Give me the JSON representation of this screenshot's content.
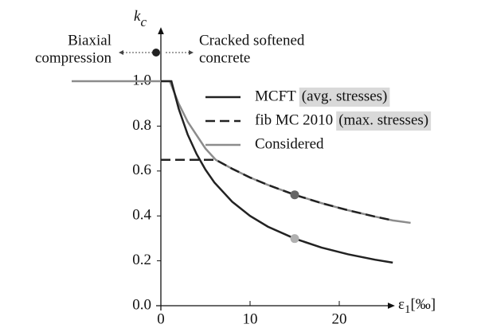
{
  "chart_data": {
    "type": "line",
    "y_label": {
      "main": "k",
      "sub": "c"
    },
    "x_label": {
      "main": "ε",
      "sub": "1",
      "unit": "[‰]"
    },
    "annotations": [
      [
        "Biaxial",
        "compression"
      ],
      [
        "Cracked softened",
        "concrete"
      ]
    ],
    "xlim": [
      -10,
      27.5
    ],
    "ylim": [
      0,
      1.0
    ],
    "xticks": [
      0,
      10,
      20
    ],
    "yticks": [
      {
        "value": 0,
        "label": "0.0"
      },
      {
        "value": 0.2,
        "label": "0.2"
      },
      {
        "value": 0.4,
        "label": "0.4"
      },
      {
        "value": 0.6,
        "label": "0.6"
      },
      {
        "value": 0.8,
        "label": "0.8"
      },
      {
        "value": 1.0,
        "label": "1.0"
      }
    ],
    "series": [
      {
        "name": "Considered",
        "color": "#8c8c8c",
        "dash": "solid",
        "x": [
          -10,
          0,
          1,
          2,
          3,
          4,
          5,
          6.15,
          8,
          10,
          12,
          15,
          18,
          21,
          24,
          26,
          28
        ],
        "values": [
          1,
          1,
          1,
          0.9,
          0.82,
          0.76,
          0.7,
          0.65,
          0.61,
          0.571,
          0.538,
          0.494,
          0.457,
          0.425,
          0.397,
          0.38,
          0.369
        ]
      },
      {
        "name": "MCFT",
        "note": "(avg. stresses)",
        "color": "#222222",
        "dash": "solid",
        "x": [
          0,
          1.18,
          2,
          3,
          4,
          5,
          6,
          8,
          10,
          12,
          15,
          18,
          21,
          24,
          26
        ],
        "values": [
          1,
          1,
          0.877,
          0.763,
          0.676,
          0.606,
          0.549,
          0.463,
          0.4,
          0.352,
          0.299,
          0.259,
          0.229,
          0.205,
          0.192
        ]
      },
      {
        "name": "fib MC 2010",
        "note": "(max. stresses)",
        "color": "#222222",
        "dash": "dashed",
        "x": [
          0,
          6.15,
          8,
          10,
          12,
          15,
          18,
          21,
          24,
          26
        ],
        "values": [
          0.65,
          0.65,
          0.61,
          0.571,
          0.538,
          0.494,
          0.457,
          0.425,
          0.397,
          0.38
        ]
      }
    ],
    "legend_order": [
      1,
      2,
      0
    ],
    "points": [
      {
        "x": 15,
        "y": 0.494,
        "color": "#666666"
      },
      {
        "x": 15,
        "y": 0.299,
        "color": "#b0b0b0"
      }
    ]
  }
}
